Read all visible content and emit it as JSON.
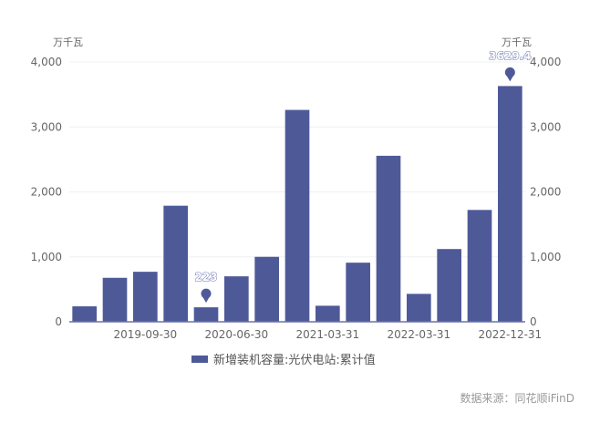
{
  "chart_data": {
    "type": "bar",
    "y_unit_left": "万千瓦",
    "y_unit_right": "万千瓦",
    "ylim": [
      0,
      4000
    ],
    "yticks": [
      0,
      1000,
      2000,
      3000,
      4000
    ],
    "ytick_labels": [
      "0",
      "1,000",
      "2,000",
      "3,000",
      "4,000"
    ],
    "categories": [
      "",
      "",
      "2019-09-30",
      "",
      "",
      "2020-06-30",
      "",
      "",
      "2021-03-31",
      "",
      "",
      "2022-03-31",
      "",
      "",
      "2022-12-31"
    ],
    "series": [
      {
        "name": "新增装机容量:光伏电站:累计值",
        "color": "#4e5a98",
        "values": [
          238,
          677,
          770,
          1787,
          223,
          700,
          1000,
          3262,
          247,
          910,
          2556,
          430,
          1120,
          1722,
          3629.4
        ]
      }
    ],
    "annotations": [
      {
        "index": 4,
        "label": "223",
        "type": "min"
      },
      {
        "index": 14,
        "label": "3629.4",
        "type": "max"
      }
    ],
    "grid": true,
    "legend_position": "bottom"
  },
  "source": "数据来源：同花顺iFinD"
}
